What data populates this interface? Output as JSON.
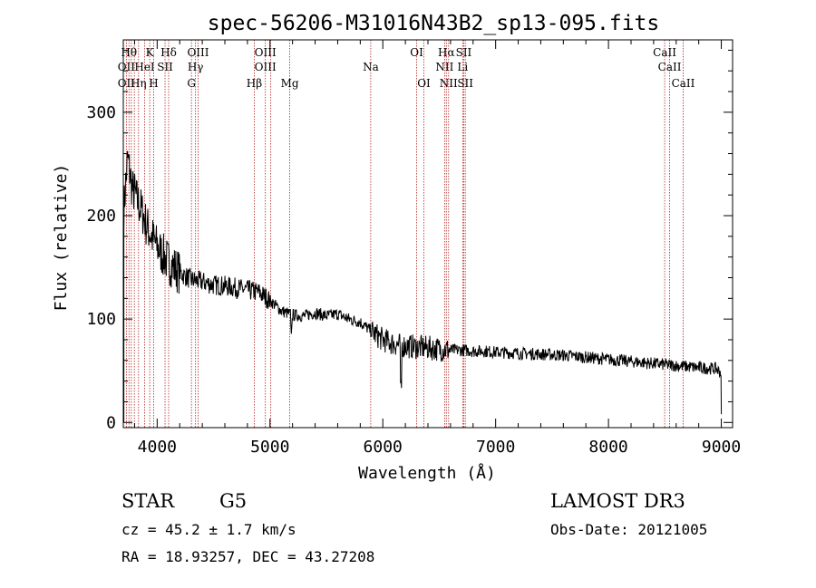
{
  "chart_data": {
    "type": "line",
    "title": "spec-56206-M31016N43B2_sp13-095.fits",
    "xlabel": "Wavelength (Å)",
    "ylabel": "Flux (relative)",
    "xlim": [
      3700,
      9100
    ],
    "ylim": [
      -5,
      370
    ],
    "x_ticks": [
      4000,
      5000,
      6000,
      7000,
      8000,
      9000
    ],
    "y_ticks": [
      0,
      100,
      200,
      300
    ],
    "series": [
      {
        "name": "flux",
        "anchors": [
          [
            3700,
            195
          ],
          [
            3720,
            230
          ],
          [
            3740,
            255
          ],
          [
            3760,
            240
          ],
          [
            3780,
            225
          ],
          [
            3800,
            222
          ],
          [
            3820,
            215
          ],
          [
            3850,
            208
          ],
          [
            3880,
            200
          ],
          [
            3900,
            192
          ],
          [
            3950,
            180
          ],
          [
            4000,
            170
          ],
          [
            4050,
            162
          ],
          [
            4100,
            155
          ],
          [
            4150,
            150
          ],
          [
            4200,
            145
          ],
          [
            4300,
            138
          ],
          [
            4400,
            136
          ],
          [
            4500,
            133
          ],
          [
            4600,
            132
          ],
          [
            4700,
            130
          ],
          [
            4800,
            128
          ],
          [
            4900,
            126
          ],
          [
            5000,
            118
          ],
          [
            5100,
            108
          ],
          [
            5200,
            104
          ],
          [
            5300,
            103
          ],
          [
            5400,
            106
          ],
          [
            5500,
            103
          ],
          [
            5600,
            105
          ],
          [
            5700,
            100
          ],
          [
            5800,
            97
          ],
          [
            5900,
            88
          ],
          [
            6000,
            80
          ],
          [
            6100,
            76
          ],
          [
            6200,
            74
          ],
          [
            6300,
            73
          ],
          [
            6400,
            72
          ],
          [
            6500,
            71
          ],
          [
            6600,
            70
          ],
          [
            6700,
            70
          ],
          [
            6800,
            69
          ],
          [
            6900,
            69
          ],
          [
            7000,
            68
          ],
          [
            7200,
            67
          ],
          [
            7400,
            66
          ],
          [
            7600,
            65
          ],
          [
            7800,
            63
          ],
          [
            8000,
            61
          ],
          [
            8200,
            59
          ],
          [
            8400,
            57
          ],
          [
            8600,
            55
          ],
          [
            8800,
            53
          ],
          [
            8950,
            52
          ],
          [
            9000,
            48
          ]
        ]
      }
    ],
    "lines": {
      "row1": [
        {
          "label": "Hθ",
          "x": 3750
        },
        {
          "label": "K",
          "x": 3934
        },
        {
          "label": "Hδ",
          "x": 4102
        },
        {
          "label": "OIII",
          "x": 4363
        },
        {
          "label": "OIII",
          "x": 4959
        },
        {
          "label": "OI",
          "x": 6300
        },
        {
          "label": "Hα",
          "x": 6563
        },
        {
          "label": "SII",
          "x": 6717
        },
        {
          "label": "CaII",
          "x": 8498
        }
      ],
      "row2": [
        {
          "label": "OII",
          "x": 3727
        },
        {
          "label": "HeI",
          "x": 3889
        },
        {
          "label": "SII",
          "x": 4070
        },
        {
          "label": "Hγ",
          "x": 4340
        },
        {
          "label": "OIII",
          "x": 4959
        },
        {
          "label": "Na",
          "x": 5893
        },
        {
          "label": "NII",
          "x": 6548
        },
        {
          "label": "Li",
          "x": 6708
        },
        {
          "label": "CaII",
          "x": 8542
        }
      ],
      "row3": [
        {
          "label": "OII",
          "x": 3727
        },
        {
          "label": "Hη",
          "x": 3835
        },
        {
          "label": "H",
          "x": 3969
        },
        {
          "label": "G",
          "x": 4304
        },
        {
          "label": "Hβ",
          "x": 4861
        },
        {
          "label": "Mg",
          "x": 5175
        },
        {
          "label": "OI",
          "x": 6364
        },
        {
          "label": "NII",
          "x": 6583
        },
        {
          "label": "SII",
          "x": 6731
        },
        {
          "label": "CaII",
          "x": 8662
        }
      ],
      "marker_positions": [
        3727,
        3750,
        3771,
        3798,
        3835,
        3889,
        3934,
        3969,
        4070,
        4102,
        4304,
        4340,
        4363,
        4861,
        4959,
        5007,
        5175,
        5893,
        6300,
        6364,
        6548,
        6563,
        6583,
        6708,
        6717,
        6731,
        8498,
        8542,
        8662
      ],
      "color": "#b22222"
    },
    "footer": {
      "object_type": "STAR",
      "subclass": "G5",
      "survey": "LAMOST DR3",
      "cz": "cz = 45.2 ± 1.7 km/s",
      "obs_date": "Obs-Date: 20121005",
      "coords": "RA =  18.93257, DEC =  43.27208"
    }
  }
}
